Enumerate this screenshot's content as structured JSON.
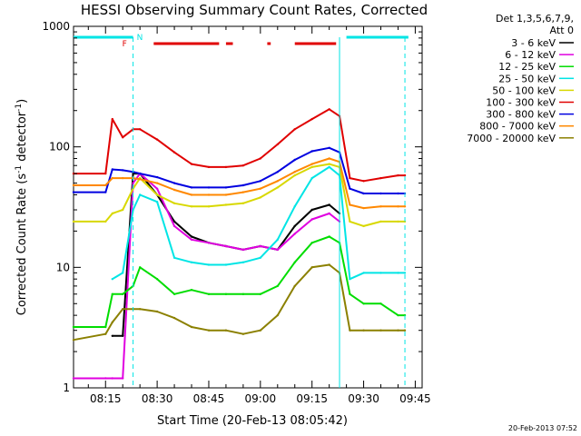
{
  "chart_data": {
    "type": "line",
    "title": "HESSI Observing Summary Count Rates, Corrected",
    "xlabel": "Start Time (20-Feb-13 08:05:42)",
    "ylabel": "Corrected Count Rate (s⁻¹ detector⁻¹)",
    "ylabel_parts": [
      "Corrected Count Rate (s",
      "-1",
      " detector",
      "-1",
      ")"
    ],
    "yscale": "log",
    "ylim": [
      1,
      1000
    ],
    "xlim": [
      "08:05:42",
      "09:47"
    ],
    "ytick_labels": [
      "1",
      "10",
      "100",
      "1000"
    ],
    "xtick_labels": [
      "08:15",
      "08:30",
      "08:45",
      "09:00",
      "09:15",
      "09:30",
      "09:45"
    ],
    "legend_header": [
      "Det 1,3,5,6,7,9,",
      "Att 0"
    ],
    "legend_position": "right",
    "footer_date": "20-Feb-2013 07:52",
    "flags": {
      "night_label": "N",
      "flare_label": "F",
      "night_color": "#00e5e5",
      "flare_color": "#e00000",
      "night_intervals": [
        [
          "08:05:42",
          "08:23"
        ],
        [
          "09:25",
          "09:43"
        ]
      ],
      "flare_intervals": [
        [
          "08:29",
          "08:48"
        ],
        [
          "08:50",
          "08:52"
        ],
        [
          "09:02",
          "09:03"
        ],
        [
          "09:10",
          "09:22"
        ]
      ]
    },
    "night_boundaries": [
      "08:23",
      "09:23",
      "09:42"
    ],
    "x": [
      "08:05:42",
      "08:15",
      "08:17",
      "08:20",
      "08:23",
      "08:25",
      "08:30",
      "08:35",
      "08:40",
      "08:45",
      "08:50",
      "08:55",
      "09:00",
      "09:05",
      "09:10",
      "09:15",
      "09:20",
      "09:23",
      "09:26",
      "09:30",
      "09:35",
      "09:40",
      "09:42"
    ],
    "series": [
      {
        "name": "3 - 6 keV",
        "color": "#000000",
        "values": [
          null,
          null,
          2.7,
          2.7,
          60,
          60,
          40,
          24,
          18,
          16,
          15,
          14,
          15,
          14,
          22,
          30,
          33,
          28,
          null,
          null,
          null,
          null,
          null
        ]
      },
      {
        "name": "6 - 12 keV",
        "color": "#e000e0",
        "values": [
          1.2,
          1.2,
          1.2,
          1.2,
          50,
          60,
          45,
          22,
          17,
          16,
          15,
          14,
          15,
          14,
          19,
          25,
          28,
          24,
          null,
          null,
          null,
          null,
          null
        ]
      },
      {
        "name": "12 - 25 keV",
        "color": "#00dd00",
        "values": [
          3.2,
          3.2,
          6,
          6,
          7,
          10,
          8,
          6,
          6.5,
          6,
          6,
          6,
          6,
          7,
          11,
          16,
          18,
          16,
          6,
          5,
          5,
          4,
          4
        ]
      },
      {
        "name": "25 - 50 keV",
        "color": "#00e5e5",
        "values": [
          null,
          null,
          8,
          9,
          30,
          40,
          35,
          12,
          11,
          10.5,
          10.5,
          11,
          12,
          17,
          32,
          55,
          68,
          58,
          8,
          9,
          9,
          9,
          9
        ]
      },
      {
        "name": "50 - 100 keV",
        "color": "#d8d800",
        "values": [
          24,
          24,
          28,
          30,
          45,
          55,
          40,
          34,
          32,
          32,
          33,
          34,
          38,
          46,
          58,
          68,
          72,
          68,
          24,
          22,
          24,
          24,
          24
        ]
      },
      {
        "name": "100 - 300 keV",
        "color": "#e00000",
        "values": [
          60,
          60,
          170,
          120,
          140,
          140,
          115,
          90,
          72,
          68,
          68,
          70,
          80,
          105,
          140,
          170,
          205,
          180,
          55,
          52,
          55,
          58,
          58
        ]
      },
      {
        "name": "300 - 800 keV",
        "color": "#0000e0",
        "values": [
          42,
          42,
          65,
          64,
          62,
          60,
          56,
          50,
          46,
          46,
          46,
          48,
          52,
          62,
          78,
          92,
          98,
          90,
          45,
          41,
          41,
          41,
          41
        ]
      },
      {
        "name": "800 - 7000 keV",
        "color": "#ff8800",
        "values": [
          48,
          48,
          55,
          55,
          55,
          54,
          50,
          44,
          40,
          40,
          40,
          42,
          45,
          52,
          62,
          72,
          80,
          75,
          33,
          31,
          32,
          32,
          32
        ]
      },
      {
        "name": "7000 - 20000 keV",
        "color": "#8b8000",
        "values": [
          2.5,
          2.8,
          3.5,
          4.5,
          4.5,
          4.5,
          4.3,
          3.8,
          3.2,
          3,
          3,
          2.8,
          3,
          4,
          7,
          10,
          10.5,
          9,
          3,
          3,
          3,
          3,
          3
        ]
      }
    ]
  }
}
